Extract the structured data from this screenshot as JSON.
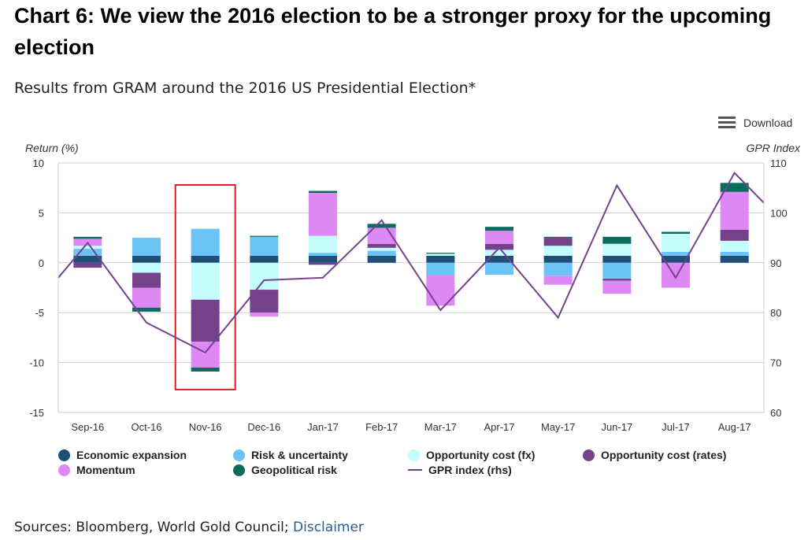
{
  "title": "Chart 6: We view the 2016 election to be a stronger proxy for the upcoming election",
  "subtitle": "Results from GRAM around the 2016 US Presidential Election*",
  "download_label": "Download",
  "sources_label": "Sources: Bloomberg, World Gold Council; ",
  "disclaimer_label": "Disclaimer",
  "chart_data": {
    "type": "bar",
    "stacked": true,
    "ylabel": "Return (%)",
    "y2label": "GPR Index",
    "ylim": [
      -15,
      10
    ],
    "y2lim": [
      60,
      110
    ],
    "yticks": [
      -15,
      -10,
      -5,
      0,
      5,
      10
    ],
    "y2ticks": [
      60,
      70,
      80,
      90,
      100,
      110
    ],
    "categories": [
      "Sep-16",
      "Oct-16",
      "Nov-16",
      "Dec-16",
      "Jan-17",
      "Feb-17",
      "Mar-17",
      "Apr-17",
      "May-17",
      "Jun-17",
      "Jul-17",
      "Aug-17"
    ],
    "series": [
      {
        "name": "Economic expansion",
        "color": "#1f4e79",
        "values": [
          0.7,
          0.7,
          0.7,
          0.7,
          0.7,
          0.7,
          0.7,
          0.7,
          0.7,
          0.7,
          0.7,
          0.7
        ]
      },
      {
        "name": "Risk & uncertainty",
        "color": "#6cc3f5",
        "values": [
          0.7,
          1.8,
          2.7,
          1.9,
          0.3,
          0.5,
          -1.2,
          -1.2,
          -1.3,
          -1.6,
          0.4,
          0.4
        ]
      },
      {
        "name": "Opportunity cost (fx)",
        "color": "#c4fbfb",
        "values": [
          0.3,
          -1.0,
          -3.7,
          -2.7,
          1.7,
          0.3,
          0.2,
          0.6,
          1.0,
          1.2,
          1.8,
          1.1
        ]
      },
      {
        "name": "Opportunity cost (rates)",
        "color": "#74418a",
        "values": [
          -0.5,
          -1.5,
          -4.2,
          -2.3,
          -0.2,
          0.4,
          0.0,
          0.6,
          0.8,
          -0.2,
          0.0,
          1.1
        ]
      },
      {
        "name": "Momentum",
        "color": "#dd88f5",
        "values": [
          0.7,
          -2.0,
          -2.6,
          -0.4,
          4.3,
          1.6,
          -3.1,
          1.3,
          -0.9,
          -1.3,
          -2.5,
          3.8
        ]
      },
      {
        "name": "Geopolitical risk",
        "color": "#0b6b5e",
        "values": [
          0.2,
          -0.4,
          -0.4,
          0.1,
          0.2,
          0.4,
          0.1,
          0.4,
          0.1,
          0.7,
          0.2,
          0.9
        ]
      }
    ],
    "line": {
      "name": "GPR index (rhs)",
      "color": "#74418a",
      "axis": "right",
      "x_start_value": 87,
      "values": [
        94,
        78,
        72,
        86.5,
        87,
        98.5,
        80.5,
        93,
        79,
        105.5,
        87,
        108
      ],
      "x_end_value": 102
    },
    "highlight_category": "Nov-16",
    "legend_position": "bottom",
    "grid": true
  }
}
